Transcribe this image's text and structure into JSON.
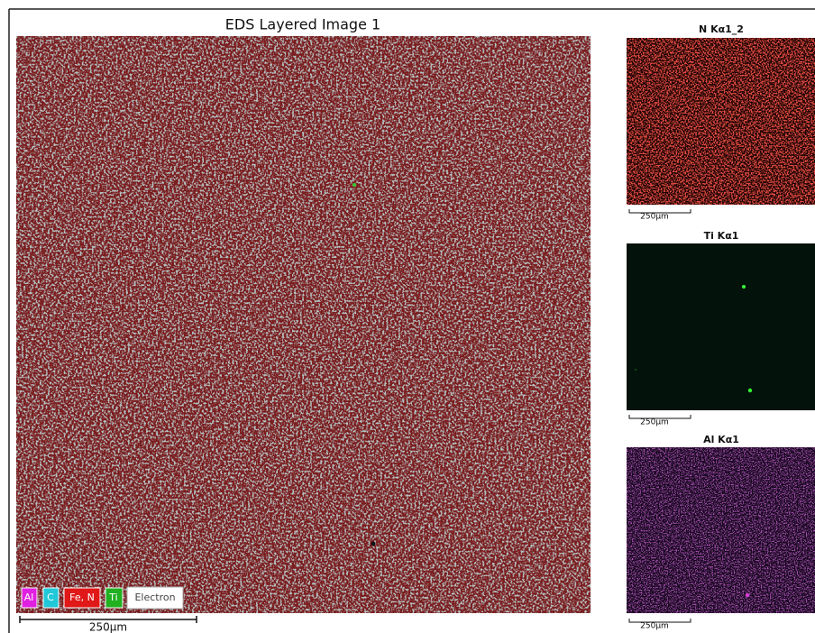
{
  "title": "EDS Layered Image 1",
  "legend": [
    "Al",
    "C",
    "Fe, N",
    "Ti",
    "Electron"
  ],
  "scale_label": "250µm",
  "maps": [
    {
      "title": "N Kα1_2",
      "scale_label": "250µm"
    },
    {
      "title": "Ti Kα1",
      "scale_label": "250µm"
    },
    {
      "title": "Al Kα1",
      "scale_label": "250µm"
    }
  ]
}
